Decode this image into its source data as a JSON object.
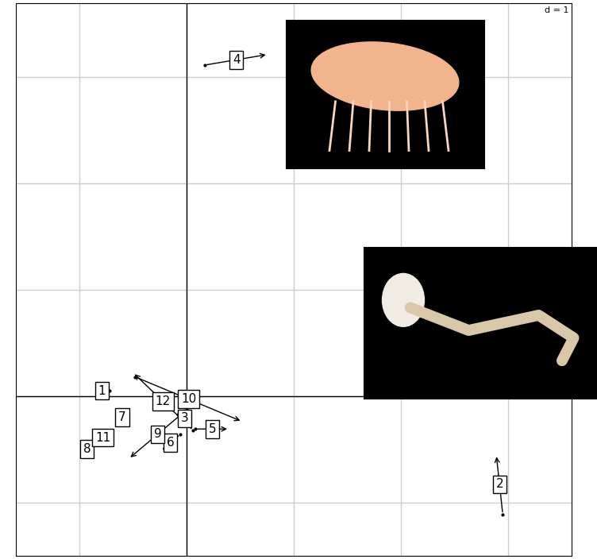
{
  "chart_data": {
    "type": "match",
    "annotations": [
      "d = 1"
    ],
    "xlim": [
      -1.59,
      3.59
    ],
    "ylim": [
      -1.5,
      3.69
    ],
    "xticks": [
      -1,
      0,
      1,
      2,
      3
    ],
    "yticks": [
      -1,
      0,
      1,
      2,
      3
    ],
    "grid": true,
    "tick_labels": false,
    "color": "#000000",
    "points": [
      {
        "label": "1",
        "x0": -0.72,
        "y0": 0.05,
        "x1": -0.86,
        "y1": 0.05
      },
      {
        "label": "2",
        "x0": 2.95,
        "y0": -1.11,
        "x1": 2.89,
        "y1": -0.55
      },
      {
        "label": "3",
        "x0": -0.08,
        "y0": -0.17,
        "x1": 0.04,
        "y1": -0.25
      },
      {
        "label": "4",
        "x0": 0.17,
        "y0": 3.11,
        "x1": 0.76,
        "y1": 3.21
      },
      {
        "label": "5",
        "x0": 0.08,
        "y0": -0.31,
        "x1": 0.4,
        "y1": -0.31
      },
      {
        "label": "6",
        "x0": -0.06,
        "y0": -0.36,
        "x1": -0.24,
        "y1": -0.52
      },
      {
        "label": "7",
        "x0": -0.55,
        "y0": -0.18,
        "x1": -0.65,
        "y1": -0.22
      },
      {
        "label": "8",
        "x0": -0.9,
        "y0": -0.48,
        "x1": -0.96,
        "y1": -0.52
      },
      {
        "label": "9",
        "x0": 0.0,
        "y0": -0.13,
        "x1": -0.54,
        "y1": -0.59
      },
      {
        "label": "10",
        "x0": -0.48,
        "y0": 0.18,
        "x1": 0.52,
        "y1": -0.24
      },
      {
        "label": "11",
        "x0": -0.7,
        "y0": -0.36,
        "x1": -0.86,
        "y1": -0.42
      },
      {
        "label": "12",
        "x0": 0.06,
        "y0": -0.32,
        "x1": -0.5,
        "y1": 0.22
      }
    ]
  }
}
